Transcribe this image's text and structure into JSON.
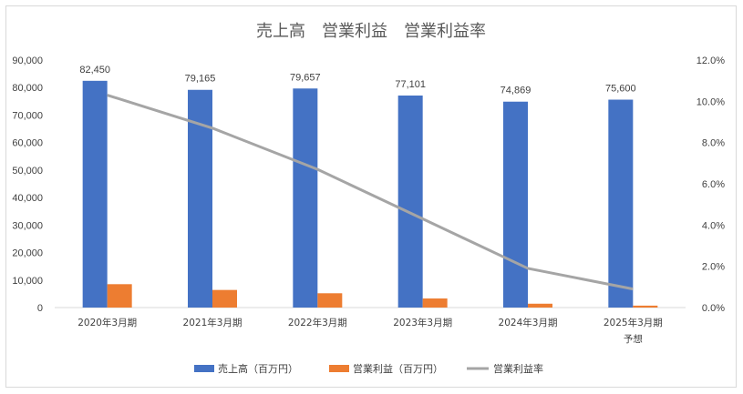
{
  "chart_data": {
    "type": "bar",
    "title": "売上高　営業利益　営業利益率",
    "categories": [
      "2020年3月期",
      "2021年3月期",
      "2022年3月期",
      "2023年3月期",
      "2024年3月期",
      "2025年3月期"
    ],
    "category_sublabels": [
      "",
      "",
      "",
      "",
      "",
      "予想"
    ],
    "series": [
      {
        "name": "売上高（百万円）",
        "type": "bar",
        "axis": "left",
        "color": "#4472C4",
        "values": [
          82450,
          79165,
          79657,
          77101,
          74869,
          75600
        ],
        "data_labels": [
          "82,450",
          "79,165",
          "79,657",
          "77,101",
          "74,869",
          "75,600"
        ]
      },
      {
        "name": "営業利益（百万円）",
        "type": "bar",
        "axis": "left",
        "color": "#ED7D31",
        "values": [
          8500,
          6400,
          5200,
          3300,
          1400,
          700
        ]
      },
      {
        "name": "営業利益率",
        "type": "line",
        "axis": "right",
        "color": "#A5A5A5",
        "values": [
          10.3,
          8.7,
          6.7,
          4.3,
          1.9,
          0.9
        ]
      }
    ],
    "left_axis": {
      "min": 0,
      "max": 90000,
      "ticks": [
        "0",
        "10,000",
        "20,000",
        "30,000",
        "40,000",
        "50,000",
        "60,000",
        "70,000",
        "80,000",
        "90,000"
      ]
    },
    "right_axis": {
      "min": 0,
      "max": 12,
      "ticks": [
        "0.0%",
        "2.0%",
        "4.0%",
        "6.0%",
        "8.0%",
        "10.0%",
        "12.0%"
      ]
    },
    "grid": false,
    "legend_position": "bottom"
  }
}
